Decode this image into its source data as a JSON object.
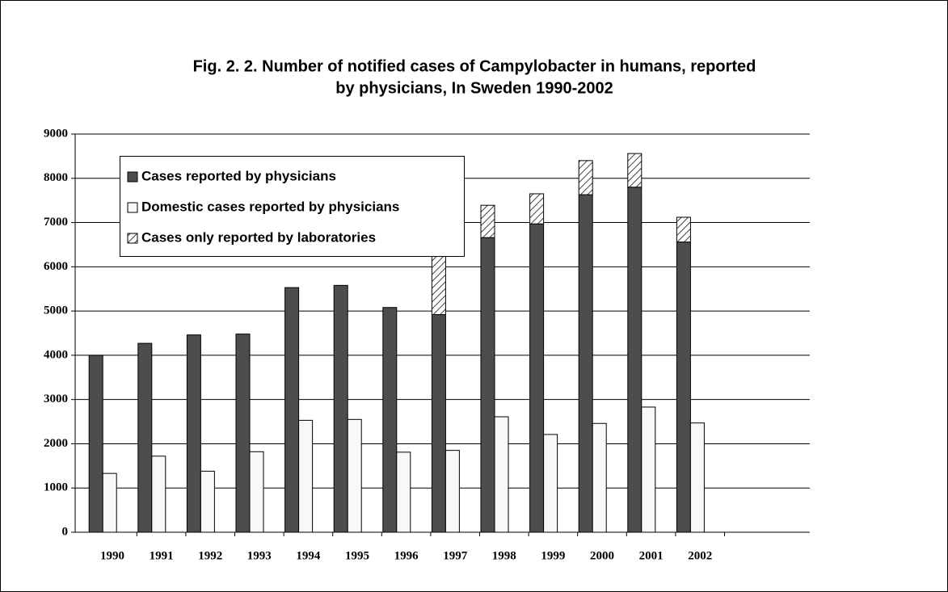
{
  "chart_data": {
    "type": "bar",
    "title": "Fig. 2. 2. Number of notified cases of Campylobacter in humans, reported",
    "subtitle": "by physicians,  In Sweden 1990-2002",
    "categories": [
      "1990",
      "1991",
      "1992",
      "1993",
      "1994",
      "1995",
      "1996",
      "1997",
      "1998",
      "1999",
      "2000",
      "2001",
      "2002"
    ],
    "series": [
      {
        "name": "Cases reported by physicians",
        "color": "#4d4d4d",
        "stack": "total",
        "values": [
          4000,
          4270,
          4460,
          4480,
          5530,
          5580,
          5080,
          4920,
          6660,
          6970,
          7630,
          7800,
          6560
        ]
      },
      {
        "name": "Domestic cases reported by physicians",
        "color": "#f8f8f8",
        "stack": "domestic",
        "values": [
          1330,
          1720,
          1380,
          1820,
          2530,
          2550,
          1810,
          1850,
          2610,
          2210,
          2460,
          2830,
          2470
        ]
      },
      {
        "name": "Cases only reported by laboratories",
        "color": "hatch",
        "stack": "total",
        "values": [
          null,
          null,
          null,
          null,
          null,
          null,
          null,
          1930,
          730,
          680,
          770,
          760,
          560
        ]
      }
    ],
    "ylim": [
      0,
      9000
    ],
    "yticks": [
      0,
      1000,
      2000,
      3000,
      4000,
      5000,
      6000,
      7000,
      8000,
      9000
    ],
    "grid": true
  }
}
